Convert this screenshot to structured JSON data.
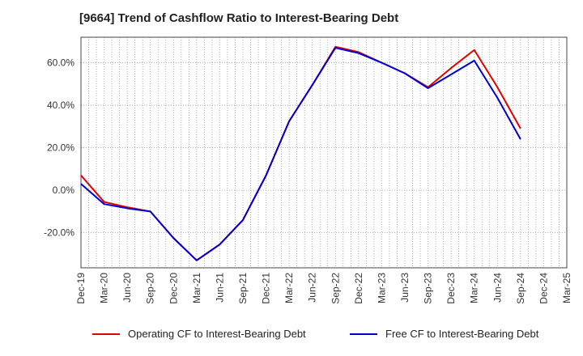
{
  "title": "[9664]  Trend of Cashflow Ratio to Interest-Bearing Debt",
  "colors": {
    "operating": "#e00000",
    "free": "#0000cc",
    "grid": "#999999",
    "axis": "#444444"
  },
  "chart_data": {
    "type": "line",
    "title": "[9664]  Trend of Cashflow Ratio to Interest-Bearing Debt",
    "xlabel": "",
    "ylabel": "",
    "categories": [
      "Dec-19",
      "Mar-20",
      "Jun-20",
      "Sep-20",
      "Dec-20",
      "Mar-21",
      "Jun-21",
      "Sep-21",
      "Dec-21",
      "Mar-22",
      "Jun-22",
      "Sep-22",
      "Dec-22",
      "Mar-23",
      "Jun-23",
      "Sep-23",
      "Dec-23",
      "Mar-24",
      "Jun-24",
      "Sep-24",
      "Dec-24",
      "Mar-25"
    ],
    "y_ticks": [
      60,
      40,
      20,
      0,
      -20
    ],
    "y_tick_labels": [
      "60.0%",
      "40.0%",
      "20.0%",
      "0.0%",
      "-20.0%"
    ],
    "ylim": [
      -36.5,
      72
    ],
    "grid": true,
    "legend_position": "bottom",
    "series": [
      {
        "name": "Operating CF to Interest-Bearing Debt",
        "color": "#e00000",
        "values": [
          7.0,
          -5.5,
          -8.0,
          -10.0,
          -22.5,
          -33.0,
          -25.5,
          -14.0,
          7.0,
          32.5,
          49.5,
          67.5,
          65.0,
          60.0,
          55.0,
          48.5,
          57.5,
          66.0,
          48.5,
          29.0,
          null,
          null
        ]
      },
      {
        "name": "Free CF to Interest-Bearing Debt",
        "color": "#0000cc",
        "values": [
          3.0,
          -6.5,
          -8.5,
          -10.0,
          -22.5,
          -33.0,
          -25.5,
          -14.0,
          7.0,
          32.5,
          49.5,
          67.0,
          64.5,
          60.0,
          55.0,
          48.0,
          54.5,
          61.0,
          43.5,
          24.0,
          null,
          null
        ]
      }
    ]
  }
}
